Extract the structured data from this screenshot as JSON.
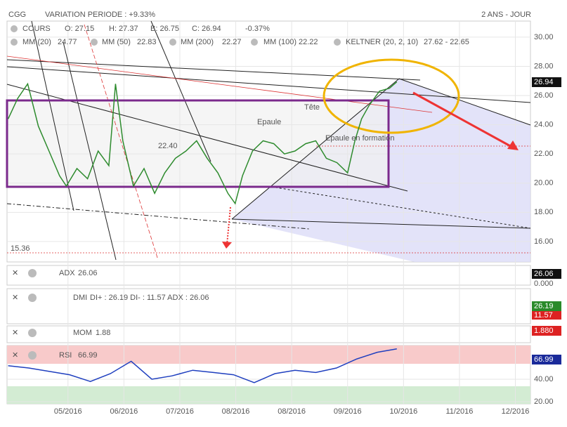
{
  "header": {
    "symbol": "CGG",
    "variation": "VARIATION PERIODE : +9.33%",
    "period": "2 ANS - JOUR"
  },
  "legend_bar": {
    "open": "O: 27.15",
    "high": "H: 27.37",
    "low": "B: 26.75",
    "close": "C: 26.94",
    "change": "-0.37%",
    "mm20": "MM (20)",
    "mm20_value": "24.77",
    "mm50": "MM (50)",
    "mm50_value": "22.83",
    "mm200": "MM (200)",
    "mm200_value": "22.27",
    "mm100": "MM (100)",
    "mm100_value": "22.22",
    "keltner": "KELTNER (20, 2, 10)",
    "keltner_value": "27.62 - 22.65"
  },
  "indicators": {
    "adx": "ADX",
    "adx_value": "26.06",
    "adx_badge": "26.06",
    "zero": "0.000",
    "dmi": "DMI",
    "dmi_value": "DI+ : 26.19 DI- : 11.57 ADX : 26.06",
    "dmi_badge_1": "26.19",
    "dmi_badge_2": "11.57",
    "mom": "MOM",
    "mom_value": "1.88",
    "mom_badge": "1.880",
    "rsi_value": "66.99"
  },
  "chart_data": [
    {
      "type": "line",
      "annotations": [
        "Tête",
        "Epaule",
        "Epaule en formation",
        "22.40",
        "15.36"
      ],
      "x": [
        3.93,
        4.1,
        4.28,
        4.47,
        4.66,
        4.85,
        4.97,
        5.16,
        5.35,
        5.54,
        5.73,
        5.85,
        5.98,
        6.17,
        6.36,
        6.55,
        6.73,
        6.92,
        7.11,
        7.3,
        7.49,
        7.68,
        7.86,
        7.99,
        8.12,
        8.3,
        8.49,
        8.68,
        8.87,
        9.06,
        9.25,
        9.43,
        9.62,
        9.81,
        10.0,
        10.13,
        10.25,
        10.38,
        10.57,
        10.75,
        10.88
      ],
      "series": [
        {
          "name": "COURS",
          "color": "#2e8b2e",
          "values": [
            24.4,
            25.8,
            26.8,
            23.9,
            22.2,
            20.5,
            19.8,
            21.0,
            20.3,
            22.2,
            21.2,
            26.8,
            22.9,
            19.8,
            21.0,
            19.3,
            20.7,
            21.7,
            22.2,
            22.9,
            21.7,
            20.7,
            19.3,
            18.6,
            20.5,
            22.2,
            22.9,
            22.7,
            22.0,
            22.2,
            22.7,
            22.9,
            21.7,
            21.4,
            20.7,
            22.9,
            24.4,
            25.3,
            26.3,
            26.5,
            26.94
          ]
        }
      ],
      "xlim": [
        3.91,
        13.27
      ],
      "xticks": [
        {
          "value": 5,
          "label": "05/2016"
        },
        {
          "value": 6,
          "label": "06/2016"
        },
        {
          "value": 7,
          "label": "07/2016"
        },
        {
          "value": 8,
          "label": "08/2016"
        },
        {
          "value": 9,
          "label": "08/2016"
        },
        {
          "value": 10,
          "label": "09/2016"
        },
        {
          "value": 11,
          "label": "10/2016"
        },
        {
          "value": 12,
          "label": "11/2016"
        },
        {
          "value": 13,
          "label": "12/2016"
        }
      ],
      "ylim": [
        14.6,
        31.1
      ],
      "yticks": [
        {
          "value": 16,
          "label": "16.00"
        },
        {
          "value": 18,
          "label": "18.00"
        },
        {
          "value": 20,
          "label": "20.00"
        },
        {
          "value": 22,
          "label": "22.00"
        },
        {
          "value": 24,
          "label": "24.00"
        },
        {
          "value": 26,
          "label": "26.00"
        },
        {
          "value": 28,
          "label": "28.00"
        },
        {
          "value": 30,
          "label": "30.00"
        }
      ],
      "grid": true
    },
    {
      "type": "line",
      "x": [
        3.93,
        4.3,
        4.66,
        5.03,
        5.4,
        5.76,
        6.13,
        6.5,
        6.86,
        7.23,
        7.6,
        7.96,
        8.33,
        8.7,
        9.06,
        9.43,
        9.8,
        10.16,
        10.53,
        10.88
      ],
      "series": [
        {
          "name": "RSI",
          "color": "#1f3fbf",
          "values": [
            52,
            50,
            47,
            44,
            38,
            45,
            56,
            40,
            43,
            48,
            46,
            44,
            37,
            45,
            48,
            46,
            50,
            58,
            64,
            66.99
          ]
        }
      ],
      "xlim": [
        3.91,
        13.27
      ],
      "ylim": [
        18.1,
        70
      ],
      "yticks": [
        {
          "value": 20,
          "label": "20.00"
        },
        {
          "value": 40,
          "label": "40.00"
        }
      ]
    }
  ]
}
